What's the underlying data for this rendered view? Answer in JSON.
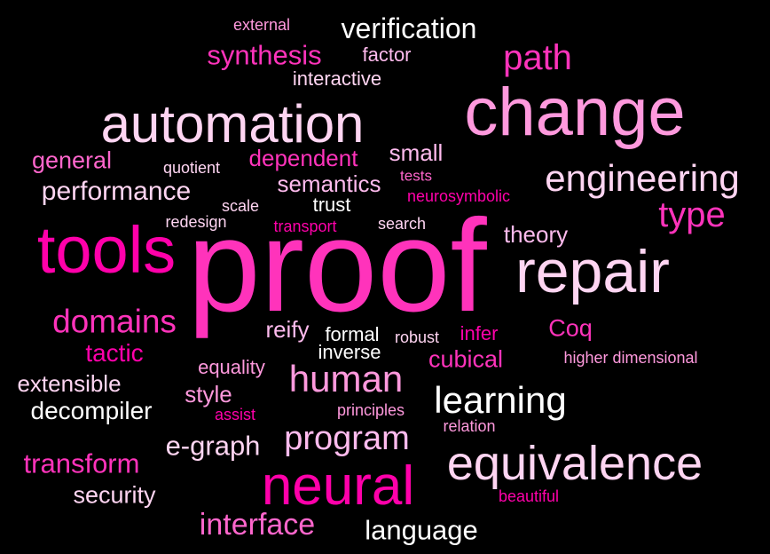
{
  "colors": {
    "background": "#000000",
    "palette": [
      "#ff00aa",
      "#ff33bb",
      "#ff66cc",
      "#ff99dd",
      "#ffbbee",
      "#ffd5f2",
      "#ffffff"
    ]
  },
  "words": [
    {
      "text": "proof",
      "color": "#ff33bb"
    },
    {
      "text": "change",
      "color": "#ff99dd"
    },
    {
      "text": "automation",
      "color": "#ffd5f2"
    },
    {
      "text": "repair",
      "color": "#ffd5f2"
    },
    {
      "text": "tools",
      "color": "#ff00aa"
    },
    {
      "text": "neural",
      "color": "#ff00aa"
    },
    {
      "text": "equivalence",
      "color": "#ffd5f2"
    },
    {
      "text": "engineering",
      "color": "#ffd5f2"
    },
    {
      "text": "learning",
      "color": "#ffffff"
    },
    {
      "text": "human",
      "color": "#ff99dd"
    },
    {
      "text": "program",
      "color": "#ffbbee"
    },
    {
      "text": "domains",
      "color": "#ff33bb"
    },
    {
      "text": "type",
      "color": "#ff33bb"
    },
    {
      "text": "path",
      "color": "#ff33bb"
    },
    {
      "text": "verification",
      "color": "#ffffff"
    },
    {
      "text": "interface",
      "color": "#ff66cc"
    },
    {
      "text": "transform",
      "color": "#ff33bb"
    },
    {
      "text": "language",
      "color": "#ffffff"
    },
    {
      "text": "e-graph",
      "color": "#ffd5f2"
    },
    {
      "text": "decompiler",
      "color": "#ffffff"
    },
    {
      "text": "synthesis",
      "color": "#ff33bb"
    },
    {
      "text": "performance",
      "color": "#ffd5f2"
    },
    {
      "text": "semantics",
      "color": "#ffbbee"
    },
    {
      "text": "dependent",
      "color": "#ff33bb"
    },
    {
      "text": "cubical",
      "color": "#ff33bb"
    },
    {
      "text": "tactic",
      "color": "#ff00aa"
    },
    {
      "text": "extensible",
      "color": "#ffd5f2"
    },
    {
      "text": "general",
      "color": "#ff66cc"
    },
    {
      "text": "security",
      "color": "#ffd5f2"
    },
    {
      "text": "theory",
      "color": "#ffbbee"
    },
    {
      "text": "Coq",
      "color": "#ff33bb"
    },
    {
      "text": "small",
      "color": "#ffbbee"
    },
    {
      "text": "reify",
      "color": "#ffbbee"
    },
    {
      "text": "style",
      "color": "#ff99dd"
    },
    {
      "text": "formal",
      "color": "#ffffff"
    },
    {
      "text": "inverse",
      "color": "#ffffff"
    },
    {
      "text": "trust",
      "color": "#ffffff"
    },
    {
      "text": "interactive",
      "color": "#ffd5f2"
    },
    {
      "text": "factor",
      "color": "#ffbbee"
    },
    {
      "text": "external",
      "color": "#ff99dd"
    },
    {
      "text": "quotient",
      "color": "#ffd5f2"
    },
    {
      "text": "tests",
      "color": "#ff66cc"
    },
    {
      "text": "neurosymbolic",
      "color": "#ff00aa"
    },
    {
      "text": "scale",
      "color": "#ffd5f2"
    },
    {
      "text": "redesign",
      "color": "#ffd5f2"
    },
    {
      "text": "transport",
      "color": "#ff00aa"
    },
    {
      "text": "search",
      "color": "#ffd5f2"
    },
    {
      "text": "robust",
      "color": "#ffd5f2"
    },
    {
      "text": "infer",
      "color": "#ff00aa"
    },
    {
      "text": "equality",
      "color": "#ff99dd"
    },
    {
      "text": "higher dimensional",
      "color": "#ff99dd"
    },
    {
      "text": "assist",
      "color": "#ff00aa"
    },
    {
      "text": "principles",
      "color": "#ff99dd"
    },
    {
      "text": "relation",
      "color": "#ff99dd"
    },
    {
      "text": "beautiful",
      "color": "#ff00aa"
    }
  ]
}
